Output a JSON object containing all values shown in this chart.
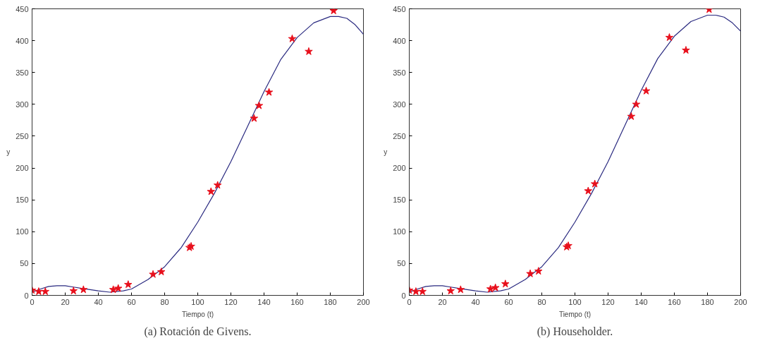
{
  "chart_data": [
    {
      "type": "scatter",
      "xlabel": "Tiempo (t)",
      "ylabel": "y",
      "xlim": [
        0,
        200
      ],
      "ylim": [
        0,
        450
      ],
      "xticks": [
        0,
        20,
        40,
        60,
        80,
        100,
        120,
        140,
        160,
        180,
        200
      ],
      "yticks": [
        0,
        50,
        100,
        150,
        200,
        250,
        300,
        350,
        400,
        450
      ],
      "grid": false,
      "annotations": [
        "(a) Rotación de Givens."
      ],
      "series": [
        {
          "marker": "star",
          "color": "#e8101c",
          "x": [
            0,
            4,
            8,
            25,
            31,
            49,
            52,
            58,
            73,
            78,
            95,
            96,
            108,
            112,
            134,
            137,
            143,
            157,
            167,
            182
          ],
          "values": [
            8,
            6,
            6,
            7,
            9,
            9,
            11,
            17,
            33,
            37,
            75,
            77,
            163,
            173,
            278,
            298,
            319,
            403,
            383,
            447
          ]
        },
        {
          "type": "line",
          "line_style": "solid",
          "color": "#2a2a80",
          "x": [
            0,
            5,
            10,
            15,
            20,
            25,
            30,
            40,
            47,
            55,
            60,
            70,
            80,
            90,
            100,
            110,
            120,
            130,
            140,
            150,
            160,
            170,
            180,
            185,
            190,
            195,
            200
          ],
          "values": [
            5,
            10,
            14,
            15,
            15,
            13,
            11,
            7,
            5,
            7,
            10,
            25,
            45,
            75,
            115,
            160,
            210,
            265,
            320,
            370,
            405,
            428,
            438,
            438,
            435,
            425,
            410
          ]
        }
      ]
    },
    {
      "type": "scatter",
      "xlabel": "Tiempo (t)",
      "ylabel": "y",
      "xlim": [
        0,
        200
      ],
      "ylim": [
        0,
        450
      ],
      "xticks": [
        0,
        20,
        40,
        60,
        80,
        100,
        120,
        140,
        160,
        180,
        200
      ],
      "yticks": [
        0,
        50,
        100,
        150,
        200,
        250,
        300,
        350,
        400,
        450
      ],
      "grid": false,
      "annotations": [
        "(b) Householder."
      ],
      "series": [
        {
          "marker": "star",
          "color": "#e8101c",
          "x": [
            0,
            4,
            8,
            25,
            31,
            49,
            52,
            58,
            73,
            78,
            95,
            96,
            108,
            112,
            134,
            137,
            143,
            157,
            167,
            181
          ],
          "values": [
            8,
            6,
            6,
            7,
            9,
            10,
            12,
            18,
            34,
            38,
            76,
            78,
            164,
            175,
            281,
            300,
            321,
            405,
            385,
            449
          ]
        },
        {
          "type": "line",
          "line_style": "solid",
          "color": "#2a2a80",
          "x": [
            0,
            5,
            10,
            15,
            20,
            25,
            30,
            40,
            47,
            55,
            60,
            70,
            80,
            90,
            100,
            110,
            120,
            130,
            140,
            150,
            160,
            170,
            180,
            185,
            190,
            195,
            200
          ],
          "values": [
            5,
            10,
            14,
            15,
            15,
            13,
            11,
            7,
            5,
            7,
            10,
            25,
            45,
            75,
            115,
            160,
            210,
            266,
            322,
            372,
            407,
            430,
            440,
            440,
            437,
            428,
            415
          ]
        }
      ]
    }
  ]
}
